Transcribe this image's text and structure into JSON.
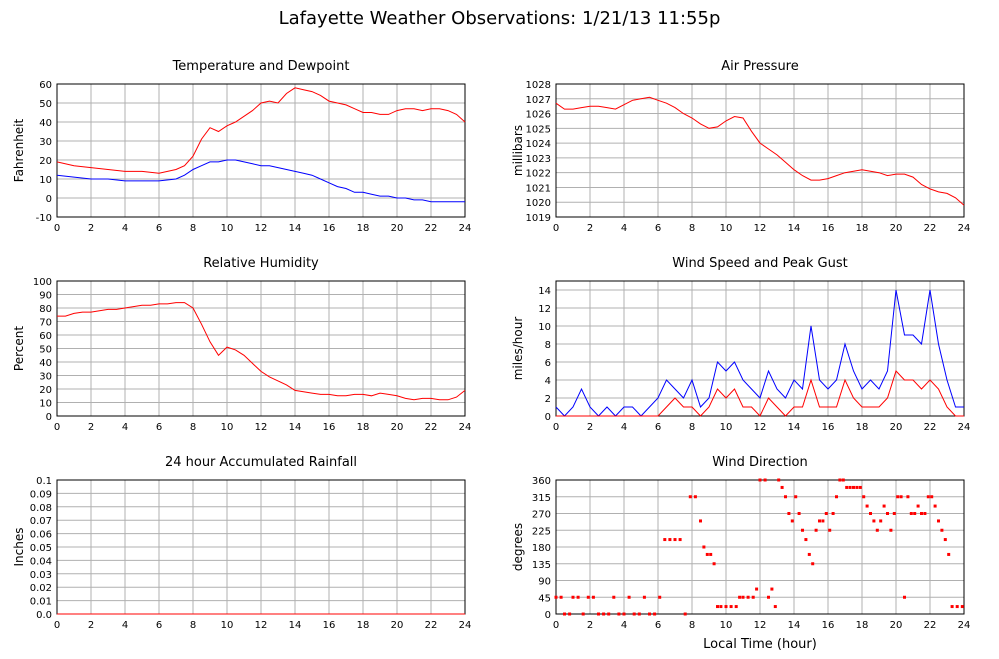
{
  "page": {
    "title": "Lafayette Weather Observations: 1/21/13 11:55p"
  },
  "x_axis": {
    "label": "Local Time (hour)",
    "ticks": [
      "0",
      "2",
      "4",
      "6",
      "8",
      "10",
      "12",
      "14",
      "16",
      "18",
      "20",
      "22",
      "24"
    ]
  },
  "colors": {
    "red": "#ff0000",
    "blue": "#0000ff",
    "grid": "#b0b0b0"
  },
  "chart_data": [
    {
      "id": "temp",
      "type": "line",
      "title": "Temperature and Dewpoint",
      "ylabel": "Fahrenheit",
      "ylim": [
        -10,
        60
      ],
      "yticks": [
        "-10",
        "0",
        "10",
        "20",
        "30",
        "40",
        "50",
        "60"
      ],
      "xlim": [
        0,
        24
      ],
      "series": [
        {
          "color": "#ff0000",
          "x": [
            0,
            1,
            2,
            3,
            4,
            5,
            6,
            7,
            7.5,
            8,
            8.5,
            9,
            9.5,
            10,
            10.5,
            11,
            11.5,
            12,
            12.5,
            13,
            13.5,
            14,
            14.5,
            15,
            15.5,
            16,
            16.5,
            17,
            17.5,
            18,
            18.5,
            19,
            19.5,
            20,
            20.5,
            21,
            21.5,
            22,
            22.5,
            23,
            23.5,
            24
          ],
          "y": [
            19,
            17,
            16,
            15,
            14,
            14,
            13,
            15,
            17,
            22,
            31,
            37,
            35,
            38,
            40,
            43,
            46,
            50,
            51,
            50,
            55,
            58,
            57,
            56,
            54,
            51,
            50,
            49,
            47,
            45,
            45,
            44,
            44,
            46,
            47,
            47,
            46,
            47,
            47,
            46,
            44,
            40
          ]
        },
        {
          "color": "#0000ff",
          "x": [
            0,
            1,
            2,
            3,
            4,
            5,
            6,
            7,
            7.5,
            8,
            8.5,
            9,
            9.5,
            10,
            10.5,
            11,
            11.5,
            12,
            12.5,
            13,
            13.5,
            14,
            14.5,
            15,
            15.5,
            16,
            16.5,
            17,
            17.5,
            18,
            18.5,
            19,
            19.5,
            20,
            20.5,
            21,
            21.5,
            22,
            22.5,
            23,
            23.5,
            24
          ],
          "y": [
            12,
            11,
            10,
            10,
            9,
            9,
            9,
            10,
            12,
            15,
            17,
            19,
            19,
            20,
            20,
            19,
            18,
            17,
            17,
            16,
            15,
            14,
            13,
            12,
            10,
            8,
            6,
            5,
            3,
            3,
            2,
            1,
            1,
            0,
            0,
            -1,
            -1,
            -2,
            -2,
            -2,
            -2,
            -2
          ]
        }
      ]
    },
    {
      "id": "pressure",
      "type": "line",
      "title": "Air Pressure",
      "ylabel": "millibars",
      "ylim": [
        1019,
        1028
      ],
      "yticks": [
        "1019",
        "1020",
        "1021",
        "1022",
        "1023",
        "1024",
        "1025",
        "1026",
        "1027",
        "1028"
      ],
      "xlim": [
        0,
        24
      ],
      "series": [
        {
          "color": "#ff0000",
          "x": [
            0,
            0.5,
            1,
            1.5,
            2,
            2.5,
            3,
            3.5,
            4,
            4.5,
            5,
            5.5,
            6,
            6.5,
            7,
            7.5,
            8,
            8.5,
            9,
            9.5,
            10,
            10.5,
            11,
            11.5,
            12,
            12.5,
            13,
            13.5,
            14,
            14.5,
            15,
            15.5,
            16,
            16.5,
            17,
            17.5,
            18,
            18.5,
            19,
            19.5,
            20,
            20.5,
            21,
            21.5,
            22,
            22.5,
            23,
            23.5,
            24
          ],
          "y": [
            1026.7,
            1026.3,
            1026.3,
            1026.4,
            1026.5,
            1026.5,
            1026.4,
            1026.3,
            1026.6,
            1026.9,
            1027.0,
            1027.1,
            1026.9,
            1026.7,
            1026.4,
            1026.0,
            1025.7,
            1025.3,
            1025.0,
            1025.1,
            1025.5,
            1025.8,
            1025.7,
            1024.8,
            1024.0,
            1023.6,
            1023.2,
            1022.7,
            1022.2,
            1021.8,
            1021.5,
            1021.5,
            1021.6,
            1021.8,
            1022.0,
            1022.1,
            1022.2,
            1022.1,
            1022.0,
            1021.8,
            1021.9,
            1021.9,
            1021.7,
            1021.2,
            1020.9,
            1020.7,
            1020.6,
            1020.3,
            1019.8
          ]
        }
      ]
    },
    {
      "id": "humidity",
      "type": "line",
      "title": "Relative Humidity",
      "ylabel": "Percent",
      "ylim": [
        0,
        100
      ],
      "yticks": [
        "0",
        "10",
        "20",
        "30",
        "40",
        "50",
        "60",
        "70",
        "80",
        "90",
        "100"
      ],
      "xlim": [
        0,
        24
      ],
      "series": [
        {
          "color": "#ff0000",
          "x": [
            0,
            0.5,
            1,
            1.5,
            2,
            2.5,
            3,
            3.5,
            4,
            4.5,
            5,
            5.5,
            6,
            6.5,
            7,
            7.5,
            8,
            8.5,
            9,
            9.5,
            10,
            10.5,
            11,
            11.5,
            12,
            12.5,
            13,
            13.5,
            14,
            14.5,
            15,
            15.5,
            16,
            16.5,
            17,
            17.5,
            18,
            18.5,
            19,
            19.5,
            20,
            20.5,
            21,
            21.5,
            22,
            22.5,
            23,
            23.5,
            24
          ],
          "y": [
            74,
            74,
            76,
            77,
            77,
            78,
            79,
            79,
            80,
            81,
            82,
            82,
            83,
            83,
            84,
            84,
            80,
            68,
            55,
            45,
            51,
            49,
            45,
            39,
            33,
            29,
            26,
            23,
            19,
            18,
            17,
            16,
            16,
            15,
            15,
            16,
            16,
            15,
            17,
            16,
            15,
            13,
            12,
            13,
            13,
            12,
            12,
            14,
            19
          ]
        }
      ]
    },
    {
      "id": "wind",
      "type": "line",
      "title": "Wind Speed and Peak Gust",
      "ylabel": "miles/hour",
      "ylim": [
        0,
        15
      ],
      "yticks": [
        "0",
        "2",
        "4",
        "6",
        "8",
        "10",
        "12",
        "14"
      ],
      "xlim": [
        0,
        24
      ],
      "series": [
        {
          "color": "#0000ff",
          "x": [
            0,
            0.5,
            1,
            1.5,
            2,
            2.5,
            3,
            3.5,
            4,
            4.5,
            5,
            5.5,
            6,
            6.5,
            7,
            7.5,
            8,
            8.5,
            9,
            9.5,
            10,
            10.5,
            11,
            11.5,
            12,
            12.5,
            13,
            13.5,
            14,
            14.5,
            15,
            15.5,
            16,
            16.5,
            17,
            17.5,
            18,
            18.5,
            19,
            19.5,
            20,
            20.5,
            21,
            21.5,
            22,
            22.5,
            23,
            23.5,
            24
          ],
          "y": [
            1,
            0,
            1,
            3,
            1,
            0,
            1,
            0,
            1,
            1,
            0,
            1,
            2,
            4,
            3,
            2,
            4,
            1,
            2,
            6,
            5,
            6,
            4,
            3,
            2,
            5,
            3,
            2,
            4,
            3,
            10,
            4,
            3,
            4,
            8,
            5,
            3,
            4,
            3,
            5,
            14,
            9,
            9,
            8,
            14,
            8,
            4,
            1,
            1
          ]
        },
        {
          "color": "#ff0000",
          "x": [
            0,
            0.5,
            1,
            1.5,
            2,
            2.5,
            3,
            3.5,
            4,
            4.5,
            5,
            5.5,
            6,
            6.5,
            7,
            7.5,
            8,
            8.5,
            9,
            9.5,
            10,
            10.5,
            11,
            11.5,
            12,
            12.5,
            13,
            13.5,
            14,
            14.5,
            15,
            15.5,
            16,
            16.5,
            17,
            17.5,
            18,
            18.5,
            19,
            19.5,
            20,
            20.5,
            21,
            21.5,
            22,
            22.5,
            23,
            23.5,
            24
          ],
          "y": [
            0,
            0,
            0,
            0,
            0,
            0,
            0,
            0,
            0,
            0,
            0,
            0,
            0,
            1,
            2,
            1,
            1,
            0,
            1,
            3,
            2,
            3,
            1,
            1,
            0,
            2,
            1,
            0,
            1,
            1,
            4,
            1,
            1,
            1,
            4,
            2,
            1,
            1,
            1,
            2,
            5,
            4,
            4,
            3,
            4,
            3,
            1,
            0,
            0
          ]
        }
      ]
    },
    {
      "id": "rain",
      "type": "line",
      "title": "24 hour Accumulated Rainfall",
      "ylabel": "Inches",
      "ylim": [
        0,
        0.1
      ],
      "yticks": [
        "0.0",
        "0.01",
        "0.02",
        "0.03",
        "0.04",
        "0.05",
        "0.06",
        "0.07",
        "0.08",
        "0.09",
        "0.1"
      ],
      "xlim": [
        0,
        24
      ],
      "series": [
        {
          "color": "#ff0000",
          "x": [
            0,
            24
          ],
          "y": [
            0,
            0
          ]
        }
      ]
    },
    {
      "id": "direction",
      "type": "scatter",
      "title": "Wind Direction",
      "ylabel": "degrees",
      "ylim": [
        0,
        360
      ],
      "yticks": [
        "0",
        "45",
        "90",
        "135",
        "180",
        "225",
        "270",
        "315",
        "360"
      ],
      "xlim": [
        0,
        24
      ],
      "series": [
        {
          "color": "#ff0000",
          "points": [
            [
              0,
              45
            ],
            [
              0.3,
              45
            ],
            [
              0.5,
              0
            ],
            [
              0.8,
              0
            ],
            [
              1,
              45
            ],
            [
              1.3,
              45
            ],
            [
              1.6,
              0
            ],
            [
              1.9,
              45
            ],
            [
              2.2,
              45
            ],
            [
              2.5,
              0
            ],
            [
              2.8,
              0
            ],
            [
              3.1,
              0
            ],
            [
              3.4,
              45
            ],
            [
              3.7,
              0
            ],
            [
              4,
              0
            ],
            [
              4.3,
              45
            ],
            [
              4.6,
              0
            ],
            [
              4.9,
              0
            ],
            [
              5.2,
              45
            ],
            [
              5.5,
              0
            ],
            [
              5.8,
              0
            ],
            [
              6.1,
              45
            ],
            [
              6.4,
              200
            ],
            [
              6.7,
              200
            ],
            [
              7,
              200
            ],
            [
              7.3,
              200
            ],
            [
              7.6,
              0
            ],
            [
              7.9,
              315
            ],
            [
              8.2,
              315
            ],
            [
              8.5,
              250
            ],
            [
              8.7,
              180
            ],
            [
              8.9,
              160
            ],
            [
              9.1,
              160
            ],
            [
              9.3,
              135
            ],
            [
              9.5,
              20
            ],
            [
              9.7,
              20
            ],
            [
              10,
              20
            ],
            [
              10.3,
              20
            ],
            [
              10.6,
              20
            ],
            [
              10.8,
              45
            ],
            [
              11,
              45
            ],
            [
              11.3,
              45
            ],
            [
              11.6,
              45
            ],
            [
              11.8,
              67
            ],
            [
              12,
              360
            ],
            [
              12.3,
              360
            ],
            [
              12.5,
              45
            ],
            [
              12.7,
              67
            ],
            [
              12.9,
              20
            ],
            [
              13.1,
              360
            ],
            [
              13.3,
              340
            ],
            [
              13.5,
              315
            ],
            [
              13.7,
              270
            ],
            [
              13.9,
              250
            ],
            [
              14.1,
              315
            ],
            [
              14.3,
              270
            ],
            [
              14.5,
              225
            ],
            [
              14.7,
              200
            ],
            [
              14.9,
              160
            ],
            [
              15.1,
              135
            ],
            [
              15.3,
              225
            ],
            [
              15.5,
              250
            ],
            [
              15.7,
              250
            ],
            [
              15.9,
              270
            ],
            [
              16.1,
              225
            ],
            [
              16.3,
              270
            ],
            [
              16.5,
              315
            ],
            [
              16.7,
              360
            ],
            [
              16.9,
              360
            ],
            [
              17.1,
              340
            ],
            [
              17.3,
              340
            ],
            [
              17.5,
              340
            ],
            [
              17.7,
              340
            ],
            [
              17.9,
              340
            ],
            [
              18.1,
              315
            ],
            [
              18.3,
              290
            ],
            [
              18.5,
              270
            ],
            [
              18.7,
              250
            ],
            [
              18.9,
              225
            ],
            [
              19.1,
              250
            ],
            [
              19.3,
              290
            ],
            [
              19.5,
              270
            ],
            [
              19.7,
              225
            ],
            [
              19.9,
              270
            ],
            [
              20.1,
              315
            ],
            [
              20.3,
              315
            ],
            [
              20.5,
              45
            ],
            [
              20.7,
              315
            ],
            [
              20.9,
              270
            ],
            [
              21.1,
              270
            ],
            [
              21.3,
              290
            ],
            [
              21.5,
              270
            ],
            [
              21.7,
              270
            ],
            [
              21.9,
              315
            ],
            [
              22.1,
              315
            ],
            [
              22.3,
              290
            ],
            [
              22.5,
              250
            ],
            [
              22.7,
              225
            ],
            [
              22.9,
              200
            ],
            [
              23.1,
              160
            ],
            [
              23.3,
              20
            ],
            [
              23.6,
              20
            ],
            [
              23.9,
              20
            ]
          ]
        }
      ]
    }
  ]
}
